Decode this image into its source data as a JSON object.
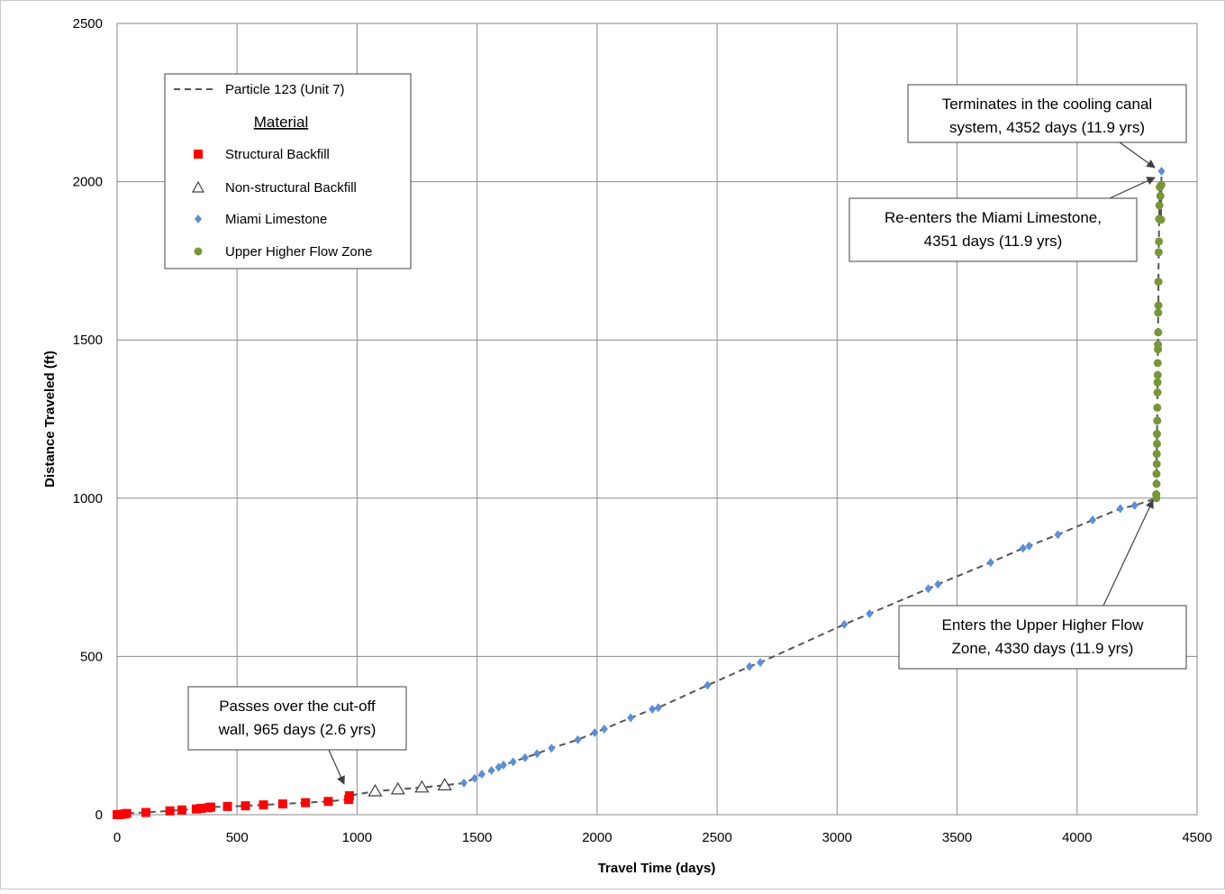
{
  "chart_data": {
    "type": "scatter",
    "xlabel": "Travel Time (days)",
    "ylabel": "Distance Traveled (ft)",
    "xlim": [
      0,
      4500
    ],
    "ylim": [
      0,
      2500
    ],
    "xticks": [
      0,
      500,
      1000,
      1500,
      2000,
      2500,
      3000,
      3500,
      4000,
      4500
    ],
    "yticks": [
      0,
      500,
      1000,
      1500,
      2000,
      2500
    ],
    "grid": true,
    "legend_position": "top-left",
    "legend": {
      "line_label": "Particle 123 (Unit 7)",
      "heading": "Material",
      "items": [
        {
          "label": "Structural Backfill",
          "marker": "square",
          "color": "#ff0000"
        },
        {
          "label": "Non-structural Backfill",
          "marker": "open-triangle",
          "color": "#404040"
        },
        {
          "label": "Miami Limestone",
          "marker": "diamond",
          "color": "#5b8fd6"
        },
        {
          "label": "Upper Higher Flow Zone",
          "marker": "circle",
          "color": "#77963a"
        }
      ]
    },
    "path_line": {
      "name": "Particle 123 (Unit 7)",
      "color": "#555555",
      "style": "dashed"
    },
    "series": [
      {
        "name": "Structural Backfill",
        "marker": "square",
        "color": "#ff0000",
        "x": [
          0,
          5,
          15,
          30,
          40,
          120,
          220,
          270,
          330,
          350,
          380,
          390,
          460,
          535,
          610,
          690,
          785,
          880,
          965,
          968
        ],
        "y": [
          0,
          0,
          1,
          2,
          4,
          7,
          12,
          15,
          18,
          20,
          22,
          24,
          26,
          28,
          31,
          34,
          38,
          42,
          48,
          60
        ]
      },
      {
        "name": "Non-structural Backfill",
        "marker": "open-triangle",
        "color": "#404040",
        "x": [
          1075,
          1170,
          1270,
          1365
        ],
        "y": [
          74,
          80,
          86,
          93
        ]
      },
      {
        "name": "Miami Limestone",
        "marker": "diamond",
        "color": "#5b8fd6",
        "x": [
          1445,
          1490,
          1520,
          1560,
          1590,
          1610,
          1650,
          1700,
          1750,
          1810,
          1920,
          1990,
          2030,
          2140,
          2230,
          2255,
          2460,
          2635,
          2680,
          3030,
          3135,
          3380,
          3420,
          3640,
          3775,
          3800,
          3920,
          4065,
          4180,
          4240,
          4352
        ],
        "y": [
          100,
          115,
          128,
          140,
          150,
          157,
          167,
          180,
          193,
          210,
          237,
          259,
          271,
          306,
          333,
          338,
          409,
          468,
          481,
          601,
          635,
          714,
          728,
          797,
          842,
          849,
          885,
          931,
          967,
          977,
          2033
        ]
      },
      {
        "name": "Upper Higher Flow Zone",
        "marker": "circle",
        "color": "#77963a",
        "x": [
          4330,
          4330,
          4331,
          4331,
          4332,
          4332,
          4333,
          4333,
          4334,
          4334,
          4335,
          4335,
          4336,
          4336,
          4337,
          4337,
          4338,
          4338,
          4339,
          4339,
          4340,
          4341,
          4342,
          4343,
          4345,
          4347,
          4350,
          4351
        ],
        "y": [
          1000,
          1012,
          1045,
          1077,
          1108,
          1140,
          1172,
          1203,
          1245,
          1286,
          1334,
          1366,
          1389,
          1427,
          1470,
          1485,
          1524,
          1586,
          1609,
          1684,
          1777,
          1811,
          1882,
          1925,
          1983,
          1955,
          1880,
          1990
        ]
      }
    ],
    "annotations": [
      {
        "id": "cutoff",
        "text_lines": [
          "Passes over the cut-off",
          "wall, 965 days (2.6 yrs)"
        ],
        "target": [
          965,
          55
        ]
      },
      {
        "id": "uhfz",
        "text_lines": [
          "Enters the Upper Higher Flow",
          "Zone, 4330 days (11.9 yrs)"
        ],
        "target": [
          4330,
          1000
        ]
      },
      {
        "id": "reenter",
        "text_lines": [
          "Re-enters the Miami Limestone,",
          "4351 days (11.9 yrs)"
        ],
        "target": [
          4351,
          2015
        ]
      },
      {
        "id": "terminate",
        "text_lines": [
          "Terminates in the cooling canal",
          "system, 4352 days (11.9 yrs)"
        ],
        "target": [
          4352,
          2040
        ]
      }
    ]
  }
}
